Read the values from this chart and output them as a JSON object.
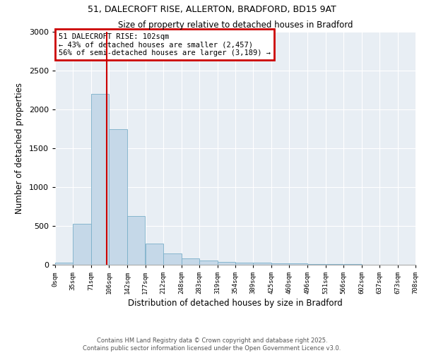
{
  "title_line1": "51, DALECROFT RISE, ALLERTON, BRADFORD, BD15 9AT",
  "title_line2": "Size of property relative to detached houses in Bradford",
  "xlabel": "Distribution of detached houses by size in Bradford",
  "ylabel": "Number of detached properties",
  "bin_edges": [
    0,
    35,
    71,
    106,
    142,
    177,
    212,
    248,
    283,
    319,
    354,
    389,
    425,
    460,
    496,
    531,
    566,
    602,
    637,
    673,
    708
  ],
  "bar_heights": [
    25,
    525,
    2200,
    1750,
    625,
    275,
    150,
    80,
    55,
    40,
    30,
    25,
    15,
    20,
    8,
    5,
    5,
    3,
    1,
    1
  ],
  "bar_color": "#c5d8e8",
  "bar_edgecolor": "#7aafc8",
  "property_size": 102,
  "vline_color": "#cc0000",
  "annotation_title": "51 DALECROFT RISE: 102sqm",
  "annotation_line1": "← 43% of detached houses are smaller (2,457)",
  "annotation_line2": "56% of semi-detached houses are larger (3,189) →",
  "annotation_box_color": "#ffffff",
  "annotation_border_color": "#cc0000",
  "ylim": [
    0,
    3000
  ],
  "background_color": "#e8eef4",
  "grid_color": "#ffffff",
  "footer_line1": "Contains HM Land Registry data © Crown copyright and database right 2025.",
  "footer_line2": "Contains public sector information licensed under the Open Government Licence v3.0.",
  "tick_labels": [
    "0sqm",
    "35sqm",
    "71sqm",
    "106sqm",
    "142sqm",
    "177sqm",
    "212sqm",
    "248sqm",
    "283sqm",
    "319sqm",
    "354sqm",
    "389sqm",
    "425sqm",
    "460sqm",
    "496sqm",
    "531sqm",
    "566sqm",
    "602sqm",
    "637sqm",
    "673sqm",
    "708sqm"
  ],
  "yticks": [
    0,
    500,
    1000,
    1500,
    2000,
    2500,
    3000
  ]
}
